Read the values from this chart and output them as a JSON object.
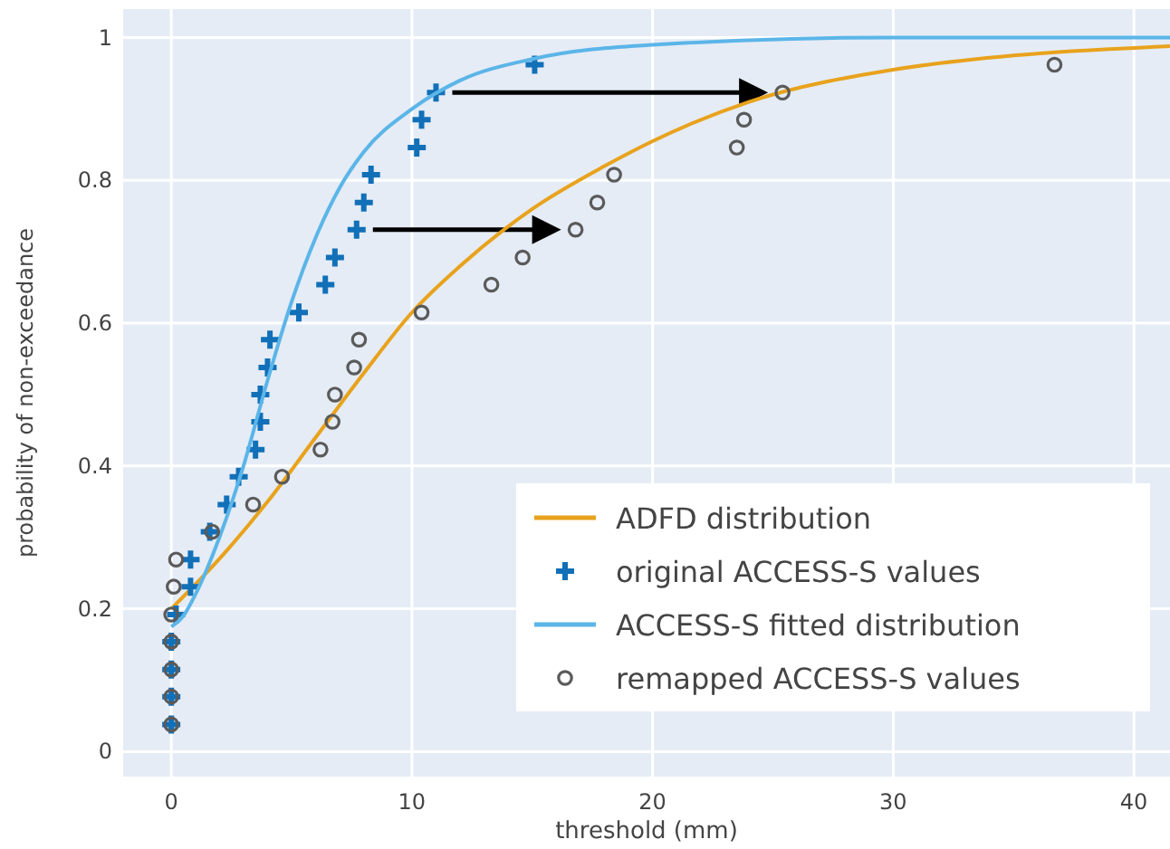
{
  "chart_data": {
    "type": "scatter",
    "xlabel": "threshold (mm)",
    "ylabel": "probability of non-exceedance",
    "xlim": [
      -2,
      41.5
    ],
    "ylim": [
      -0.035,
      1.04
    ],
    "xticks": [
      0,
      10,
      20,
      30,
      40
    ],
    "yticks": [
      0,
      0.2,
      0.4,
      0.6,
      0.8,
      1
    ],
    "grid": true,
    "legend": "bottom right",
    "series": [
      {
        "name": "ADFD distribution",
        "type": "line",
        "marker": "none",
        "color": "#e8a21c",
        "x": [
          0,
          2,
          4,
          6,
          8,
          10,
          12,
          15,
          18,
          20,
          24,
          30,
          35,
          41.5
        ],
        "values": [
          0.2,
          0.27,
          0.35,
          0.44,
          0.53,
          0.615,
          0.68,
          0.76,
          0.82,
          0.855,
          0.91,
          0.955,
          0.975,
          0.988
        ]
      },
      {
        "name": "original ACCESS-S values",
        "marker": "cross",
        "color": "#1170b8",
        "x": [
          0,
          0,
          0,
          0,
          0.2,
          0.8,
          0.8,
          1.6,
          2.3,
          2.8,
          3.5,
          3.7,
          3.7,
          4.0,
          4.1,
          5.3,
          6.4,
          6.8,
          7.7,
          8.0,
          8.3,
          10.2,
          10.4,
          11.0,
          15.1
        ],
        "values": [
          0.038,
          0.077,
          0.115,
          0.154,
          0.192,
          0.231,
          0.269,
          0.308,
          0.346,
          0.385,
          0.423,
          0.462,
          0.5,
          0.538,
          0.577,
          0.615,
          0.654,
          0.692,
          0.731,
          0.769,
          0.808,
          0.846,
          0.885,
          0.923,
          0.962
        ]
      },
      {
        "name": "ACCESS-S fitted distribution",
        "type": "line",
        "marker": "none",
        "color": "#5bb5e8",
        "x": [
          0,
          0.5,
          1,
          2,
          3,
          4,
          5,
          6,
          7,
          8,
          10,
          12,
          15,
          20,
          30,
          41.5
        ],
        "values": [
          0.175,
          0.19,
          0.22,
          0.3,
          0.4,
          0.52,
          0.63,
          0.72,
          0.79,
          0.84,
          0.9,
          0.94,
          0.97,
          0.99,
          1,
          1
        ]
      },
      {
        "name": "remapped ACCESS-S values",
        "marker": "circle",
        "color": "#5a5a5a",
        "x": [
          0,
          0,
          0,
          0,
          0,
          0.1,
          0.2,
          1.7,
          3.4,
          4.6,
          6.2,
          6.7,
          6.8,
          7.6,
          7.8,
          10.4,
          13.3,
          14.6,
          16.8,
          17.7,
          18.4,
          23.5,
          23.8,
          25.4,
          36.7
        ],
        "values": [
          0.038,
          0.077,
          0.115,
          0.154,
          0.192,
          0.231,
          0.269,
          0.308,
          0.346,
          0.385,
          0.423,
          0.462,
          0.5,
          0.538,
          0.577,
          0.615,
          0.654,
          0.692,
          0.731,
          0.769,
          0.808,
          0.846,
          0.885,
          0.923,
          0.962
        ]
      }
    ]
  }
}
